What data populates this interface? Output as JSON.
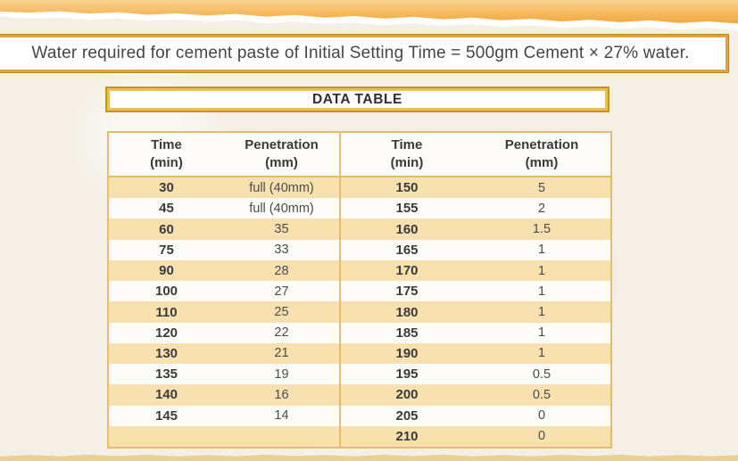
{
  "banner": {
    "text": "Water required for cement paste of Initial Setting Time = 500gm Cement × 27% water."
  },
  "data_table": {
    "title": "DATA TABLE",
    "columns": [
      {
        "label": "Time",
        "unit": "(min)"
      },
      {
        "label": "Penetration",
        "unit": "(mm)"
      },
      {
        "label": "Time",
        "unit": "(min)"
      },
      {
        "label": "Penetration",
        "unit": "(mm)"
      }
    ],
    "rows": [
      [
        "30",
        "full (40mm)",
        "150",
        "5"
      ],
      [
        "45",
        "full (40mm)",
        "155",
        "2"
      ],
      [
        "60",
        "35",
        "160",
        "1.5"
      ],
      [
        "75",
        "33",
        "165",
        "1"
      ],
      [
        "90",
        "28",
        "170",
        "1"
      ],
      [
        "100",
        "27",
        "175",
        "1"
      ],
      [
        "110",
        "25",
        "180",
        "1"
      ],
      [
        "120",
        "22",
        "185",
        "1"
      ],
      [
        "130",
        "21",
        "190",
        "1"
      ],
      [
        "135",
        "19",
        "195",
        "0.5"
      ],
      [
        "140",
        "16",
        "200",
        "0.5"
      ],
      [
        "145",
        "14",
        "205",
        "0"
      ],
      [
        "",
        "",
        "210",
        "0"
      ]
    ]
  },
  "colors": {
    "band_orange": "#efa540",
    "band_orange_light": "#f9d494",
    "box_border": "#dfa53a",
    "box_border_dark": "#c9912c",
    "table_border": "#e5bd6c",
    "row_stripe": "#f8e1ae",
    "bottom_strip": "#e9cf92",
    "text": "#454548"
  }
}
